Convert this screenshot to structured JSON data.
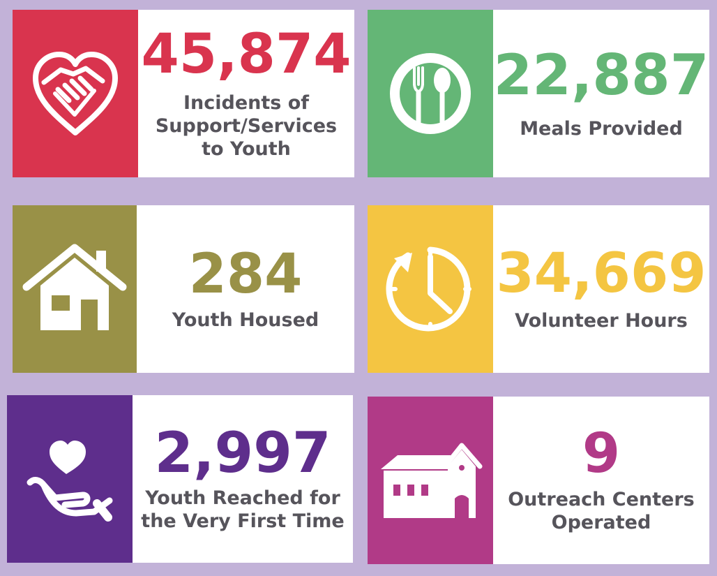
{
  "colors": {
    "background": "#c2b2d8",
    "label": "#56545b",
    "pink": "#d9344e",
    "green": "#64b676",
    "olive": "#999147",
    "yellow": "#f4c542",
    "purple": "#5e2e8c",
    "magenta": "#b13a87"
  },
  "stats": [
    {
      "value": "45,874",
      "label": "Incidents of\nSupport/Services\nto Youth",
      "icon": "heart-handshake-icon",
      "color": "#d9344e"
    },
    {
      "value": "22,887",
      "label": "Meals Provided",
      "icon": "plate-fork-spoon-icon",
      "color": "#64b676"
    },
    {
      "value": "284",
      "label": "Youth Housed",
      "icon": "house-icon",
      "color": "#999147"
    },
    {
      "value": "34,669",
      "label": "Volunteer Hours",
      "icon": "clock-icon",
      "color": "#f4c542"
    },
    {
      "value": "2,997",
      "label": "Youth Reached for\nthe Very First Time",
      "icon": "hand-heart-icon",
      "color": "#5e2e8c"
    },
    {
      "value": "9",
      "label": "Outreach Centers\nOperated",
      "icon": "building-icon",
      "color": "#b13a87"
    }
  ]
}
